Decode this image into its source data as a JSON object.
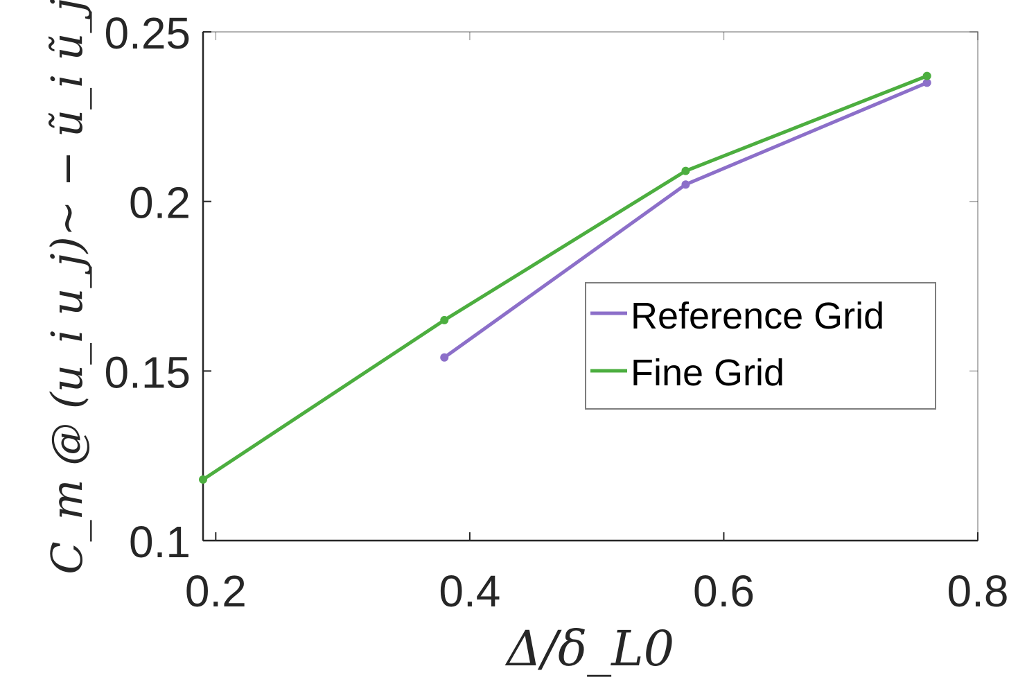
{
  "chart_data": {
    "type": "line",
    "xlabel": "Δ/δ_L0",
    "ylabel": "C_m @ (u_i u_j)~ − ũ_i ũ_j",
    "xlim": [
      0.19,
      0.8
    ],
    "ylim": [
      0.1,
      0.25
    ],
    "xticks": [
      "0.2",
      "0.4",
      "0.6",
      "0.8"
    ],
    "yticks": [
      "0.1",
      "0.15",
      "0.2",
      "0.25"
    ],
    "grid": false,
    "legend_position": "center-right",
    "series": [
      {
        "name": "Reference Grid",
        "color": "#8c6fc9",
        "x": [
          0.38,
          0.57,
          0.76
        ],
        "y": [
          0.154,
          0.205,
          0.235
        ]
      },
      {
        "name": "Fine Grid",
        "color": "#4cae3f",
        "x": [
          0.19,
          0.38,
          0.57,
          0.76
        ],
        "y": [
          0.118,
          0.165,
          0.209,
          0.237
        ]
      }
    ]
  }
}
